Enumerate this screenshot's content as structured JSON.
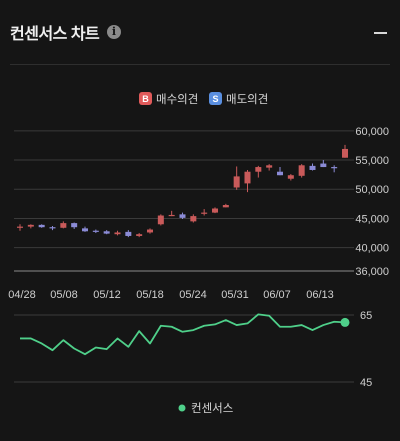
{
  "header": {
    "title": "컨센서스 차트",
    "info_icon": "info-icon",
    "collapse_icon": "minus-icon"
  },
  "chart_data": [
    {
      "type": "candlestick",
      "legend": [
        {
          "badge": "B",
          "label": "매수의견",
          "color": "#e05a5a"
        },
        {
          "badge": "S",
          "label": "매도의견",
          "color": "#5a8fe0"
        }
      ],
      "legend_position": "top-right",
      "ylim": [
        36000,
        61000
      ],
      "yticks": [
        "60,000",
        "55,000",
        "50,000",
        "45,000",
        "40,000",
        "36,000"
      ],
      "xticks": [
        "04/28",
        "05/08",
        "05/12",
        "05/18",
        "05/24",
        "05/31",
        "06/07",
        "06/13"
      ],
      "colors": {
        "up": "#c95a5a",
        "down": "#8b8bd6"
      },
      "candles": [
        {
          "o": 43500,
          "h": 44000,
          "l": 42900,
          "c": 43600
        },
        {
          "o": 43600,
          "h": 44000,
          "l": 43300,
          "c": 43900
        },
        {
          "o": 43900,
          "h": 44000,
          "l": 43400,
          "c": 43500
        },
        {
          "o": 43500,
          "h": 43700,
          "l": 43000,
          "c": 43400
        },
        {
          "o": 43400,
          "h": 44500,
          "l": 43300,
          "c": 44200
        },
        {
          "o": 44200,
          "h": 44300,
          "l": 43200,
          "c": 43500
        },
        {
          "o": 43300,
          "h": 43600,
          "l": 42700,
          "c": 42800
        },
        {
          "o": 42900,
          "h": 43100,
          "l": 42500,
          "c": 42700
        },
        {
          "o": 42800,
          "h": 43000,
          "l": 42300,
          "c": 42400
        },
        {
          "o": 42300,
          "h": 42900,
          "l": 42100,
          "c": 42600
        },
        {
          "o": 42700,
          "h": 43000,
          "l": 41800,
          "c": 42000
        },
        {
          "o": 42000,
          "h": 42500,
          "l": 41800,
          "c": 42300
        },
        {
          "o": 42600,
          "h": 43300,
          "l": 42400,
          "c": 43100
        },
        {
          "o": 44000,
          "h": 45700,
          "l": 43800,
          "c": 45500
        },
        {
          "o": 45500,
          "h": 46300,
          "l": 45400,
          "c": 45600
        },
        {
          "o": 45700,
          "h": 46000,
          "l": 44900,
          "c": 45100
        },
        {
          "o": 44500,
          "h": 45700,
          "l": 44300,
          "c": 45400
        },
        {
          "o": 45800,
          "h": 46600,
          "l": 45500,
          "c": 46000
        },
        {
          "o": 46000,
          "h": 46900,
          "l": 45900,
          "c": 46700
        },
        {
          "o": 46900,
          "h": 47500,
          "l": 46900,
          "c": 47300
        },
        {
          "o": 50300,
          "h": 53900,
          "l": 49900,
          "c": 52200
        },
        {
          "o": 51000,
          "h": 53300,
          "l": 49500,
          "c": 53000
        },
        {
          "o": 53000,
          "h": 54000,
          "l": 52000,
          "c": 53800
        },
        {
          "o": 53700,
          "h": 54300,
          "l": 53200,
          "c": 54100
        },
        {
          "o": 53000,
          "h": 53800,
          "l": 52400,
          "c": 52400
        },
        {
          "o": 51800,
          "h": 52600,
          "l": 51500,
          "c": 52400
        },
        {
          "o": 52300,
          "h": 54300,
          "l": 52000,
          "c": 54100
        },
        {
          "o": 54000,
          "h": 54400,
          "l": 53200,
          "c": 53300
        },
        {
          "o": 54400,
          "h": 55000,
          "l": 53800,
          "c": 53800
        },
        {
          "o": 53800,
          "h": 54100,
          "l": 52900,
          "c": 53600
        },
        {
          "o": 55400,
          "h": 57600,
          "l": 55400,
          "c": 56900
        }
      ]
    },
    {
      "type": "line",
      "series": [
        {
          "name": "컨센서스",
          "color": "#4fd08a"
        }
      ],
      "ylim": [
        42,
        68
      ],
      "yticks": [
        "65",
        "45"
      ],
      "values": [
        58,
        58,
        56.5,
        54.5,
        57.5,
        55,
        53.3,
        55.3,
        54.8,
        58,
        55.5,
        60.2,
        56.5,
        61.8,
        61.5,
        60,
        60.5,
        61.8,
        62.2,
        63.5,
        62,
        62.5,
        65.2,
        64.8,
        61.5,
        61.5,
        62,
        60.5,
        62,
        63,
        62.8
      ]
    }
  ]
}
